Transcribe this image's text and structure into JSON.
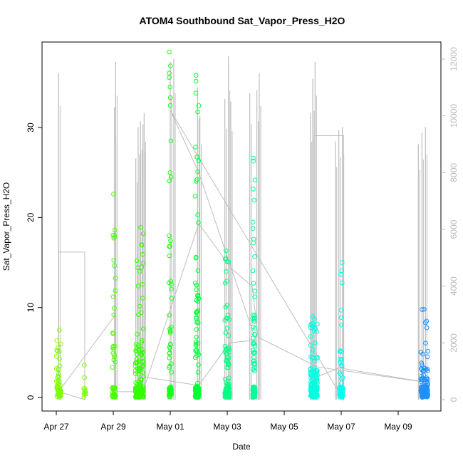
{
  "chart_data": {
    "type": "scatter",
    "title": "ATOM4 Southbound Sat_Vapor_Press_H2O",
    "xlabel": "Date",
    "ylabel": "Sat_Vapor_Press_H2O",
    "xlim": [
      "2022-04-26 12:00",
      "2022-05-10 12:00"
    ],
    "ylim": [
      -1.5,
      39.5
    ],
    "y2lim": [
      -400,
      12600
    ],
    "grid": false,
    "x_ticks": [
      "Apr 27",
      "Apr 29",
      "May 01",
      "May 03",
      "May 05",
      "May 07",
      "May 09"
    ],
    "y_ticks": [
      0,
      10,
      20,
      30
    ],
    "y2_ticks": [
      0,
      2000,
      4000,
      6000,
      8000,
      10000,
      12000
    ],
    "secondary_series": {
      "color": "#bdbdbd",
      "spikes": [
        {
          "x": "2022-04-27 02:00",
          "y": 11500
        },
        {
          "x": "2022-04-29 01:00",
          "y": 10300
        },
        {
          "x": "2022-04-29 02:00",
          "y": 11900
        },
        {
          "x": "2022-04-29 19:00",
          "y": 8500
        },
        {
          "x": "2022-04-29 21:00",
          "y": 9600
        },
        {
          "x": "2022-04-29 23:00",
          "y": 9800
        },
        {
          "x": "2022-04-30 01:00",
          "y": 9700
        },
        {
          "x": "2022-04-30 02:00",
          "y": 10100
        },
        {
          "x": "2022-05-01 00:00",
          "y": 11900
        },
        {
          "x": "2022-05-01 03:00",
          "y": 12000
        },
        {
          "x": "2022-05-01 23:00",
          "y": 11000
        },
        {
          "x": "2022-05-02 01:00",
          "y": 10000
        },
        {
          "x": "2022-05-02 22:00",
          "y": 10600
        },
        {
          "x": "2022-05-03 01:00",
          "y": 12100
        },
        {
          "x": "2022-05-03 03:00",
          "y": 10500
        },
        {
          "x": "2022-05-03 19:00",
          "y": 10800
        },
        {
          "x": "2022-05-04 01:00",
          "y": 10900
        },
        {
          "x": "2022-05-04 03:00",
          "y": 11500
        },
        {
          "x": "2022-05-05 22:00",
          "y": 10100
        },
        {
          "x": "2022-05-06 00:00",
          "y": 11300
        },
        {
          "x": "2022-05-06 02:00",
          "y": 11900
        },
        {
          "x": "2022-05-06 19:00",
          "y": 9100
        },
        {
          "x": "2022-05-06 22:00",
          "y": 9500
        },
        {
          "x": "2022-05-07 01:00",
          "y": 9600
        },
        {
          "x": "2022-05-09 17:00",
          "y": 9000
        },
        {
          "x": "2022-05-09 20:00",
          "y": 9400
        },
        {
          "x": "2022-05-09 23:00",
          "y": 9600
        }
      ],
      "path": [
        [
          "2022-04-27 02:00",
          1600
        ],
        [
          "2022-04-27 02:00",
          5200
        ],
        [
          "2022-04-28 00:00",
          5200
        ],
        [
          "2022-04-28 00:00",
          0
        ],
        [
          "2022-04-27 02:00",
          280
        ],
        [
          "2022-04-29 02:00",
          3000
        ],
        [
          "2022-04-29 02:00",
          280
        ],
        [
          "2022-04-30 01:00",
          280
        ],
        [
          "2022-05-02 00:00",
          6200
        ],
        [
          "2022-05-03 04:00",
          4600
        ],
        [
          "2022-05-03 21:00",
          4000
        ],
        [
          "2022-05-04 02:00",
          2200
        ],
        [
          "2022-05-06 04:00",
          1150
        ],
        [
          "2022-05-09 22:00",
          620
        ],
        [
          "2022-05-06 22:00",
          1120
        ],
        [
          "2022-05-06 01:00",
          750
        ],
        [
          "2022-05-06 01:00",
          9300
        ],
        [
          "2022-05-07 02:00",
          9300
        ],
        [
          "2022-05-07 02:00",
          0
        ],
        [
          "2022-05-01 00:00",
          10200
        ],
        [
          "2022-05-02 00:00",
          8000
        ],
        [
          "2022-05-04 00:00",
          2100
        ],
        [
          "2022-05-03 02:00",
          2000
        ],
        [
          "2022-05-02 00:00",
          500
        ],
        [
          "2022-04-30 02:00",
          800
        ]
      ]
    },
    "clusters": [
      {
        "center": "2022-04-27 02:00",
        "width_h": 4,
        "color": "#7fff00",
        "max": 7.5,
        "count": 60
      },
      {
        "center": "2022-04-28 00:00",
        "width_h": 2,
        "color": "#7fff00",
        "max": 3.6,
        "count": 12
      },
      {
        "center": "2022-04-29 00:30",
        "width_h": 3,
        "color": "#4dff00",
        "max": 22.6,
        "count": 55
      },
      {
        "center": "2022-04-29 22:00",
        "width_h": 7,
        "color": "#33ff00",
        "max": 18.9,
        "count": 170
      },
      {
        "center": "2022-05-01 00:00",
        "width_h": 2,
        "color": "#1aff1a",
        "max": 38.4,
        "count": 80
      },
      {
        "center": "2022-05-01 22:30",
        "width_h": 3,
        "color": "#00ff33",
        "max": 35.8,
        "count": 140
      },
      {
        "center": "2022-05-03 00:00",
        "width_h": 4,
        "color": "#00ff80",
        "max": 16.3,
        "count": 110
      },
      {
        "center": "2022-05-03 22:30",
        "width_h": 2,
        "color": "#00ff99",
        "max": 26.6,
        "count": 110
      },
      {
        "center": "2022-05-06 01:00",
        "width_h": 6,
        "color": "#00ffe0",
        "max": 9.0,
        "count": 170
      },
      {
        "center": "2022-05-07 00:00",
        "width_h": 3,
        "color": "#00ffee",
        "max": 15.0,
        "count": 60
      },
      {
        "center": "2022-05-09 22:00",
        "width_h": 6,
        "color": "#1e90ff",
        "max": 9.8,
        "count": 140
      }
    ]
  }
}
